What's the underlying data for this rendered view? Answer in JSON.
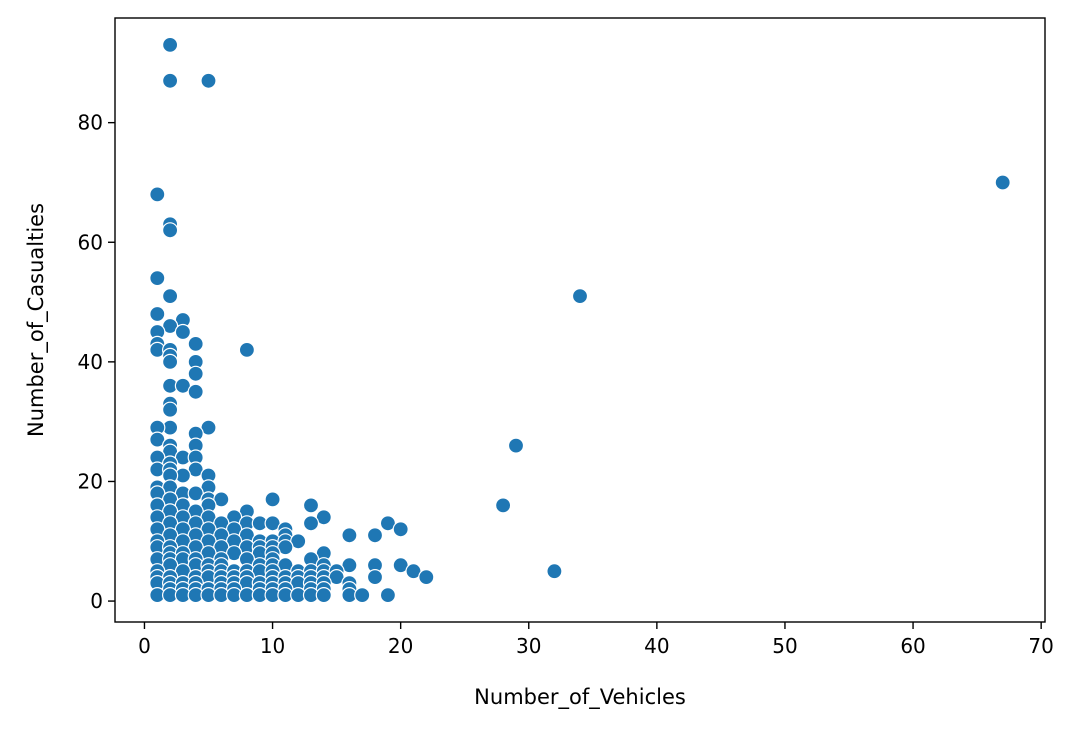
{
  "chart_data": {
    "type": "scatter",
    "title": "",
    "xlabel": "Number_of_Vehicles",
    "ylabel": "Number_of_Casualties",
    "xlim": [
      -2.3,
      70.3
    ],
    "ylim": [
      -3.5,
      97.5
    ],
    "xticks": [
      0,
      10,
      20,
      30,
      40,
      50,
      60,
      70
    ],
    "yticks": [
      0,
      20,
      40,
      60,
      80
    ],
    "grid": false,
    "color": "#1f77b4",
    "points": [
      [
        2,
        93
      ],
      [
        2,
        87
      ],
      [
        5,
        87
      ],
      [
        67,
        70
      ],
      [
        1,
        68
      ],
      [
        2,
        63
      ],
      [
        2,
        62
      ],
      [
        1,
        54
      ],
      [
        34,
        51
      ],
      [
        2,
        51
      ],
      [
        1,
        48
      ],
      [
        3,
        47
      ],
      [
        2,
        46
      ],
      [
        1,
        45
      ],
      [
        3,
        45
      ],
      [
        4,
        43
      ],
      [
        1,
        43
      ],
      [
        1,
        42
      ],
      [
        2,
        42
      ],
      [
        8,
        42
      ],
      [
        2,
        41
      ],
      [
        2,
        40
      ],
      [
        4,
        40
      ],
      [
        4,
        38
      ],
      [
        2,
        36
      ],
      [
        3,
        36
      ],
      [
        4,
        35
      ],
      [
        2,
        33
      ],
      [
        2,
        32
      ],
      [
        5,
        29
      ],
      [
        2,
        29
      ],
      [
        1,
        29
      ],
      [
        4,
        28
      ],
      [
        1,
        27
      ],
      [
        29,
        26
      ],
      [
        4,
        26
      ],
      [
        2,
        26
      ],
      [
        2,
        25
      ],
      [
        1,
        24
      ],
      [
        3,
        24
      ],
      [
        4,
        24
      ],
      [
        2,
        23
      ],
      [
        1,
        22
      ],
      [
        4,
        22
      ],
      [
        2,
        22
      ],
      [
        3,
        21
      ],
      [
        5,
        21
      ],
      [
        2,
        21
      ],
      [
        1,
        19
      ],
      [
        5,
        19
      ],
      [
        2,
        19
      ],
      [
        3,
        18
      ],
      [
        1,
        18
      ],
      [
        4,
        18
      ],
      [
        2,
        17
      ],
      [
        5,
        17
      ],
      [
        6,
        17
      ],
      [
        10,
        17
      ],
      [
        1,
        16
      ],
      [
        3,
        16
      ],
      [
        5,
        16
      ],
      [
        13,
        16
      ],
      [
        28,
        16
      ],
      [
        2,
        15
      ],
      [
        4,
        15
      ],
      [
        8,
        15
      ],
      [
        1,
        14
      ],
      [
        3,
        14
      ],
      [
        5,
        14
      ],
      [
        7,
        14
      ],
      [
        14,
        14
      ],
      [
        2,
        13
      ],
      [
        4,
        13
      ],
      [
        6,
        13
      ],
      [
        8,
        13
      ],
      [
        9,
        13
      ],
      [
        10,
        13
      ],
      [
        13,
        13
      ],
      [
        19,
        13
      ],
      [
        1,
        12
      ],
      [
        3,
        12
      ],
      [
        5,
        12
      ],
      [
        7,
        12
      ],
      [
        11,
        12
      ],
      [
        20,
        12
      ],
      [
        2,
        11
      ],
      [
        4,
        11
      ],
      [
        6,
        11
      ],
      [
        8,
        11
      ],
      [
        11,
        11
      ],
      [
        16,
        11
      ],
      [
        18,
        11
      ],
      [
        1,
        10
      ],
      [
        3,
        10
      ],
      [
        5,
        10
      ],
      [
        7,
        10
      ],
      [
        9,
        10
      ],
      [
        10,
        10
      ],
      [
        11,
        10
      ],
      [
        12,
        10
      ],
      [
        1,
        9
      ],
      [
        2,
        9
      ],
      [
        4,
        9
      ],
      [
        6,
        9
      ],
      [
        8,
        9
      ],
      [
        9,
        9
      ],
      [
        10,
        9
      ],
      [
        11,
        9
      ],
      [
        2,
        8
      ],
      [
        3,
        8
      ],
      [
        5,
        8
      ],
      [
        7,
        8
      ],
      [
        9,
        8
      ],
      [
        10,
        8
      ],
      [
        14,
        8
      ],
      [
        1,
        7
      ],
      [
        2,
        7
      ],
      [
        3,
        7
      ],
      [
        4,
        7
      ],
      [
        6,
        7
      ],
      [
        8,
        7
      ],
      [
        10,
        7
      ],
      [
        13,
        7
      ],
      [
        2,
        6
      ],
      [
        4,
        6
      ],
      [
        5,
        6
      ],
      [
        6,
        6
      ],
      [
        9,
        6
      ],
      [
        10,
        6
      ],
      [
        11,
        6
      ],
      [
        14,
        6
      ],
      [
        16,
        6
      ],
      [
        18,
        6
      ],
      [
        20,
        6
      ],
      [
        1,
        5
      ],
      [
        3,
        5
      ],
      [
        5,
        5
      ],
      [
        6,
        5
      ],
      [
        7,
        5
      ],
      [
        8,
        5
      ],
      [
        9,
        5
      ],
      [
        10,
        5
      ],
      [
        12,
        5
      ],
      [
        13,
        5
      ],
      [
        14,
        5
      ],
      [
        15,
        5
      ],
      [
        21,
        5
      ],
      [
        32,
        5
      ],
      [
        1,
        4
      ],
      [
        2,
        4
      ],
      [
        4,
        4
      ],
      [
        5,
        4
      ],
      [
        6,
        4
      ],
      [
        7,
        4
      ],
      [
        8,
        4
      ],
      [
        10,
        4
      ],
      [
        11,
        4
      ],
      [
        12,
        4
      ],
      [
        13,
        4
      ],
      [
        14,
        4
      ],
      [
        15,
        4
      ],
      [
        18,
        4
      ],
      [
        22,
        4
      ],
      [
        1,
        3
      ],
      [
        2,
        3
      ],
      [
        3,
        3
      ],
      [
        4,
        3
      ],
      [
        6,
        3
      ],
      [
        7,
        3
      ],
      [
        8,
        3
      ],
      [
        9,
        3
      ],
      [
        10,
        3
      ],
      [
        11,
        3
      ],
      [
        12,
        3
      ],
      [
        13,
        3
      ],
      [
        14,
        3
      ],
      [
        16,
        3
      ],
      [
        2,
        2
      ],
      [
        3,
        2
      ],
      [
        4,
        2
      ],
      [
        5,
        2
      ],
      [
        6,
        2
      ],
      [
        7,
        2
      ],
      [
        9,
        2
      ],
      [
        10,
        2
      ],
      [
        11,
        2
      ],
      [
        13,
        2
      ],
      [
        14,
        2
      ],
      [
        16,
        2
      ],
      [
        1,
        1
      ],
      [
        2,
        1
      ],
      [
        3,
        1
      ],
      [
        4,
        1
      ],
      [
        5,
        1
      ],
      [
        6,
        1
      ],
      [
        7,
        1
      ],
      [
        8,
        1
      ],
      [
        9,
        1
      ],
      [
        10,
        1
      ],
      [
        11,
        1
      ],
      [
        12,
        1
      ],
      [
        13,
        1
      ],
      [
        14,
        1
      ],
      [
        16,
        1
      ],
      [
        17,
        1
      ],
      [
        19,
        1
      ]
    ]
  }
}
